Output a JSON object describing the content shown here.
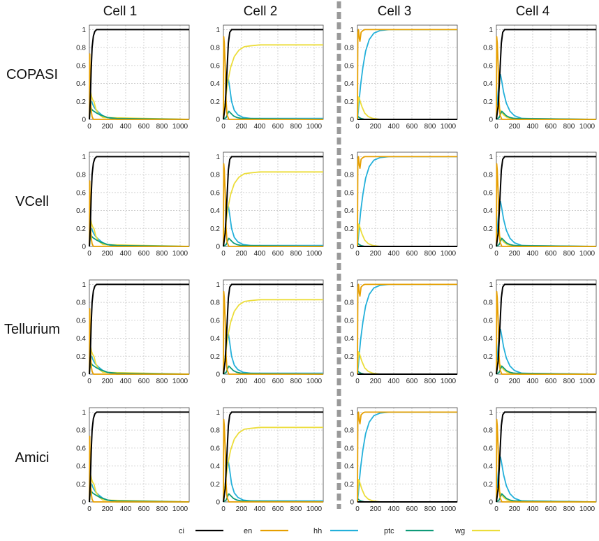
{
  "figure": {
    "columns": [
      "Cell 1",
      "Cell 2",
      "Cell 3",
      "Cell 4"
    ],
    "rows": [
      "COPASI",
      "VCell",
      "Tellurium",
      "Amici"
    ]
  },
  "chart_data": {
    "type": "line",
    "layout": "grid 4 rows x 4 columns of small multiples",
    "x_range": [
      0,
      1100
    ],
    "y_range": [
      0,
      1.05
    ],
    "x_ticks": [
      0,
      200,
      400,
      600,
      800,
      1000
    ],
    "y_ticks": [
      0,
      0.2,
      0.4,
      0.6,
      0.8,
      1
    ],
    "grid": true,
    "legend_position": "bottom",
    "series_styles": [
      {
        "name": "ci",
        "color": "#000000"
      },
      {
        "name": "en",
        "color": "#E69F00"
      },
      {
        "name": "hh",
        "color": "#23B0DA"
      },
      {
        "name": "ptc",
        "color": "#0E9A78"
      },
      {
        "name": "wg",
        "color": "#ECDD3A"
      }
    ],
    "panels": [
      {
        "column": "Cell 1",
        "series": [
          {
            "name": "ci",
            "x": [
              0,
              10,
              20,
              30,
              45,
              60,
              80,
              100,
              1100
            ],
            "y": [
              0,
              0.2,
              0.55,
              0.8,
              0.93,
              0.98,
              1,
              1,
              1
            ]
          },
          {
            "name": "en",
            "x": [
              0,
              4,
              8,
              14,
              20,
              30,
              45,
              1100
            ],
            "y": [
              0,
              0.73,
              0.55,
              0.25,
              0.1,
              0.03,
              0,
              0
            ]
          },
          {
            "name": "hh",
            "x": [
              0,
              8,
              15,
              25,
              35,
              50,
              70,
              100,
              150,
              200,
              300,
              1100
            ],
            "y": [
              0,
              0.1,
              0.19,
              0.2,
              0.17,
              0.14,
              0.11,
              0.08,
              0.04,
              0.02,
              0,
              0
            ]
          },
          {
            "name": "ptc",
            "x": [
              0,
              8,
              15,
              22,
              35,
              50,
              80,
              120,
              200,
              300,
              1100
            ],
            "y": [
              0,
              0.08,
              0.15,
              0.12,
              0.1,
              0.09,
              0.07,
              0.05,
              0.02,
              0.01,
              0
            ]
          },
          {
            "name": "wg",
            "x": [
              0,
              8,
              15,
              25,
              35,
              50,
              70,
              100,
              150,
              1100
            ],
            "y": [
              0,
              0.2,
              0.3,
              0.25,
              0.22,
              0.2,
              0.12,
              0.06,
              0.02,
              0
            ]
          }
        ]
      },
      {
        "column": "Cell 2",
        "series": [
          {
            "name": "ci",
            "x": [
              0,
              20,
              40,
              55,
              70,
              90,
              110,
              1100
            ],
            "y": [
              0,
              0.15,
              0.55,
              0.85,
              0.97,
              1,
              1,
              1
            ]
          },
          {
            "name": "en",
            "x": [
              0,
              4,
              10,
              20,
              30,
              40,
              60,
              1100
            ],
            "y": [
              0,
              0.92,
              0.85,
              0.6,
              0.2,
              0.05,
              0,
              0
            ]
          },
          {
            "name": "hh",
            "x": [
              0,
              20,
              40,
              55,
              70,
              90,
              120,
              160,
              220,
              300,
              1100
            ],
            "y": [
              0,
              0.2,
              0.42,
              0.45,
              0.35,
              0.2,
              0.1,
              0.05,
              0.02,
              0.01,
              0.01
            ]
          },
          {
            "name": "ptc",
            "x": [
              0,
              30,
              50,
              60,
              80,
              110,
              150,
              200,
              1100
            ],
            "y": [
              0,
              0.02,
              0.07,
              0.09,
              0.07,
              0.04,
              0.02,
              0.01,
              0
            ]
          },
          {
            "name": "wg",
            "x": [
              0,
              20,
              50,
              80,
              120,
              170,
              230,
              300,
              400,
              500,
              1100
            ],
            "y": [
              0,
              0.2,
              0.43,
              0.58,
              0.7,
              0.77,
              0.81,
              0.82,
              0.83,
              0.83,
              0.83
            ]
          }
        ]
      },
      {
        "column": "Cell 3",
        "series": [
          {
            "name": "ci",
            "x": [
              0,
              1100
            ],
            "y": [
              0,
              0
            ]
          },
          {
            "name": "en",
            "x": [
              0,
              5,
              12,
              20,
              28,
              40,
              60,
              80,
              110,
              160,
              1100
            ],
            "y": [
              0,
              0.97,
              1.0,
              0.9,
              0.87,
              0.97,
              0.99,
              1,
              1,
              1,
              1
            ]
          },
          {
            "name": "hh",
            "x": [
              0,
              10,
              20,
              35,
              60,
              90,
              130,
              180,
              250,
              350,
              500,
              1100
            ],
            "y": [
              0,
              0.1,
              0.22,
              0.38,
              0.58,
              0.76,
              0.89,
              0.96,
              0.99,
              1,
              1,
              1
            ]
          },
          {
            "name": "ptc",
            "x": [
              0,
              8,
              20,
              40,
              80,
              1100
            ],
            "y": [
              0.02,
              0.03,
              0.02,
              0.01,
              0,
              0
            ]
          },
          {
            "name": "wg",
            "x": [
              0,
              10,
              20,
              30,
              50,
              80,
              120,
              170,
              250,
              1100
            ],
            "y": [
              0,
              0.25,
              0.24,
              0.2,
              0.14,
              0.07,
              0.03,
              0.01,
              0,
              0
            ]
          }
        ]
      },
      {
        "column": "Cell 4",
        "series": [
          {
            "name": "ci",
            "x": [
              0,
              20,
              40,
              55,
              70,
              90,
              110,
              1100
            ],
            "y": [
              0,
              0.15,
              0.55,
              0.85,
              0.97,
              1,
              1,
              1
            ]
          },
          {
            "name": "en",
            "x": [
              0,
              4,
              10,
              20,
              30,
              40,
              60,
              1100
            ],
            "y": [
              0,
              0.92,
              0.85,
              0.6,
              0.2,
              0.05,
              0,
              0
            ]
          },
          {
            "name": "hh",
            "x": [
              0,
              15,
              30,
              45,
              60,
              80,
              110,
              150,
              200,
              280,
              1100
            ],
            "y": [
              0,
              0.25,
              0.45,
              0.5,
              0.42,
              0.3,
              0.18,
              0.09,
              0.04,
              0.01,
              0
            ]
          },
          {
            "name": "ptc",
            "x": [
              0,
              30,
              50,
              60,
              80,
              110,
              150,
              200,
              1100
            ],
            "y": [
              0,
              0.02,
              0.07,
              0.09,
              0.07,
              0.04,
              0.02,
              0.01,
              0
            ]
          },
          {
            "name": "wg",
            "x": [
              0,
              15,
              30,
              50,
              80,
              120,
              170,
              250,
              1100
            ],
            "y": [
              0,
              0.15,
              0.12,
              0.09,
              0.05,
              0.02,
              0.01,
              0,
              0
            ]
          }
        ]
      }
    ]
  }
}
